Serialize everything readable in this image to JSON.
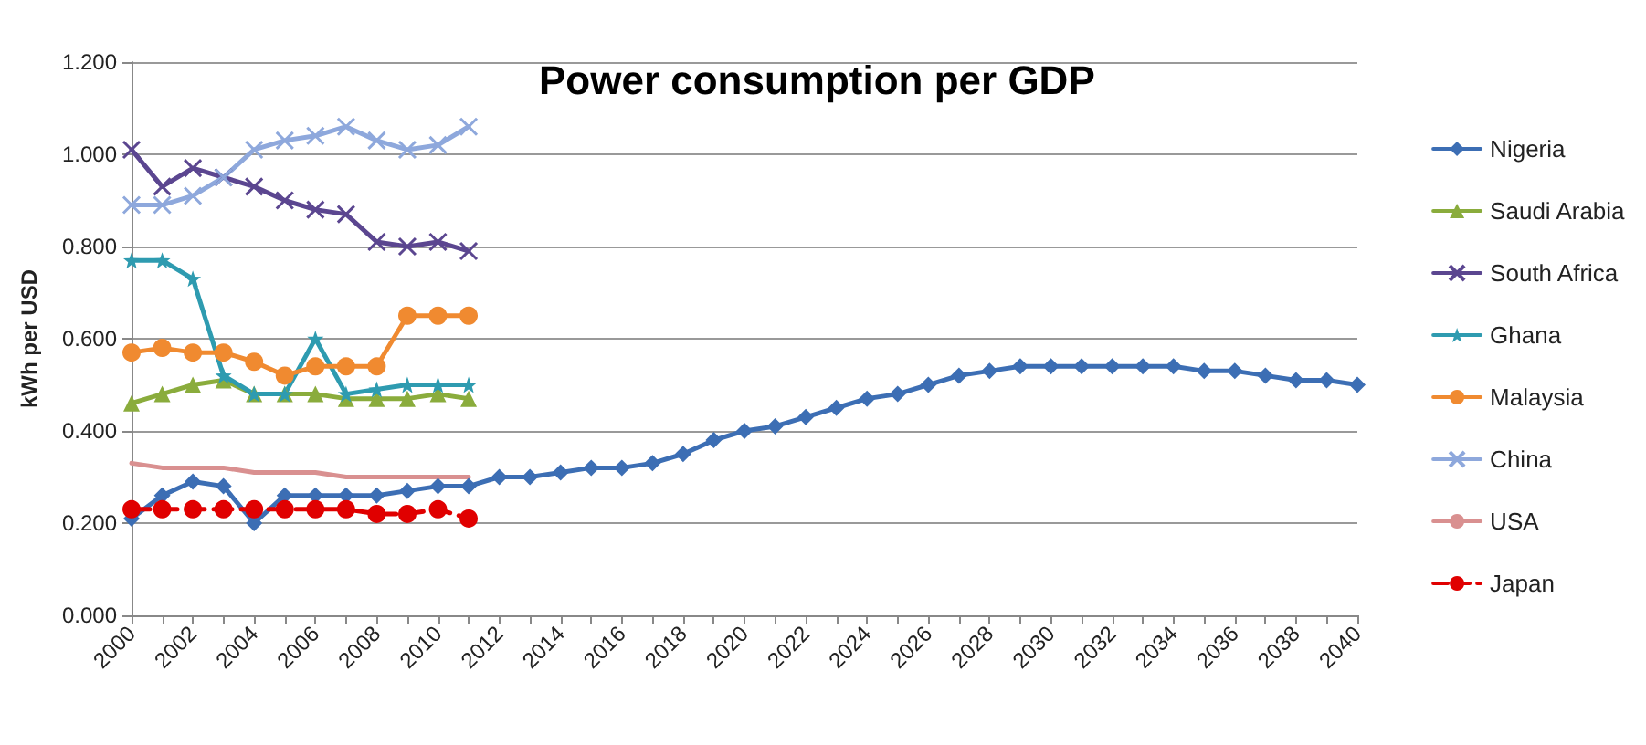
{
  "chart_data": {
    "type": "line",
    "title": "Power consumption per GDP",
    "ylabel": "kWh per USD",
    "categories": [
      "2000",
      null,
      "2002",
      null,
      "2004",
      null,
      "2006",
      null,
      "2008",
      null,
      "2010",
      null,
      "2012",
      null,
      "2014",
      null,
      "2016",
      null,
      "2018",
      null,
      "2020",
      null,
      "2022",
      null,
      "2024",
      null,
      "2026",
      null,
      "2028",
      null,
      "2030",
      null,
      "2032",
      null,
      "2034",
      null,
      "2036",
      null,
      "2038",
      null,
      "2040"
    ],
    "ylim": [
      0,
      1.2
    ],
    "yticks": [
      {
        "value": 0,
        "label": "0.000"
      },
      {
        "value": 0.2,
        "label": "0.200"
      },
      {
        "value": 0.4,
        "label": "0.400"
      },
      {
        "value": 0.6,
        "label": "0.600"
      },
      {
        "value": 0.8,
        "label": "0.800"
      },
      {
        "value": 1,
        "label": "1.000"
      },
      {
        "value": 1.2,
        "label": "1.200"
      }
    ],
    "grid": "y",
    "legend": "right",
    "line_style": "solid",
    "series": [
      {
        "name": "Nigeria",
        "color": "#3c6eb4",
        "marker": "diamond",
        "values": [
          0.21,
          0.26,
          0.29,
          0.28,
          0.2,
          0.26,
          0.26,
          0.26,
          0.26,
          0.27,
          0.28,
          0.28,
          0.3,
          0.3,
          0.31,
          0.32,
          0.32,
          0.33,
          0.35,
          0.38,
          0.4,
          0.41,
          0.43,
          0.45,
          0.47,
          0.48,
          0.5,
          0.52,
          0.53,
          0.54,
          0.54,
          0.54,
          0.54,
          0.54,
          0.54,
          0.53,
          0.53,
          0.52,
          0.51,
          0.51,
          0.5
        ]
      },
      {
        "name": "Saudi Arabia",
        "color": "#8aac3c",
        "marker": "triangle",
        "values": [
          0.46,
          0.48,
          0.5,
          0.51,
          0.48,
          0.48,
          0.48,
          0.47,
          0.47,
          0.47,
          0.48,
          0.47,
          null,
          null,
          null,
          null,
          null,
          null,
          null,
          null,
          null,
          null,
          null,
          null,
          null,
          null,
          null,
          null,
          null,
          null,
          null,
          null,
          null,
          null,
          null,
          null,
          null,
          null,
          null,
          null,
          null
        ]
      },
      {
        "name": "South Africa",
        "color": "#5b4690",
        "marker": "cross",
        "values": [
          1.01,
          0.93,
          0.97,
          0.95,
          0.93,
          0.9,
          0.88,
          0.87,
          0.81,
          0.8,
          0.81,
          0.79,
          null,
          null,
          null,
          null,
          null,
          null,
          null,
          null,
          null,
          null,
          null,
          null,
          null,
          null,
          null,
          null,
          null,
          null,
          null,
          null,
          null,
          null,
          null,
          null,
          null,
          null,
          null,
          null,
          null
        ]
      },
      {
        "name": "Ghana",
        "color": "#2e9bb0",
        "marker": "star",
        "values": [
          0.77,
          0.77,
          0.73,
          0.52,
          0.48,
          0.48,
          0.6,
          0.48,
          0.49,
          0.5,
          0.5,
          0.5,
          null,
          null,
          null,
          null,
          null,
          null,
          null,
          null,
          null,
          null,
          null,
          null,
          null,
          null,
          null,
          null,
          null,
          null,
          null,
          null,
          null,
          null,
          null,
          null,
          null,
          null,
          null,
          null,
          null
        ]
      },
      {
        "name": "Malaysia",
        "color": "#f08a30",
        "marker": "circle",
        "values": [
          0.57,
          0.58,
          0.57,
          0.57,
          0.55,
          0.52,
          0.54,
          0.54,
          0.54,
          0.65,
          0.65,
          0.65,
          null,
          null,
          null,
          null,
          null,
          null,
          null,
          null,
          null,
          null,
          null,
          null,
          null,
          null,
          null,
          null,
          null,
          null,
          null,
          null,
          null,
          null,
          null,
          null,
          null,
          null,
          null,
          null,
          null
        ]
      },
      {
        "name": "China",
        "color": "#8ea8dc",
        "marker": "cross",
        "values": [
          0.89,
          0.89,
          0.91,
          0.95,
          1.01,
          1.03,
          1.04,
          1.06,
          1.03,
          1.01,
          1.02,
          1.06,
          null,
          null,
          null,
          null,
          null,
          null,
          null,
          null,
          null,
          null,
          null,
          null,
          null,
          null,
          null,
          null,
          null,
          null,
          null,
          null,
          null,
          null,
          null,
          null,
          null,
          null,
          null,
          null,
          null
        ]
      },
      {
        "name": "USA",
        "color": "#d99090",
        "marker": "none",
        "values": [
          0.33,
          0.32,
          0.32,
          0.32,
          0.31,
          0.31,
          0.31,
          0.3,
          0.3,
          0.3,
          0.3,
          0.3,
          null,
          null,
          null,
          null,
          null,
          null,
          null,
          null,
          null,
          null,
          null,
          null,
          null,
          null,
          null,
          null,
          null,
          null,
          null,
          null,
          null,
          null,
          null,
          null,
          null,
          null,
          null,
          null,
          null
        ]
      },
      {
        "name": "Japan",
        "color": "#e00000",
        "marker": "circle",
        "line_style": "dashed",
        "values": [
          0.23,
          0.23,
          0.23,
          0.23,
          0.23,
          0.23,
          0.23,
          0.23,
          0.22,
          0.22,
          0.23,
          0.21,
          null,
          null,
          null,
          null,
          null,
          null,
          null,
          null,
          null,
          null,
          null,
          null,
          null,
          null,
          null,
          null,
          null,
          null,
          null,
          null,
          null,
          null,
          null,
          null,
          null,
          null,
          null,
          null,
          null
        ]
      }
    ]
  }
}
